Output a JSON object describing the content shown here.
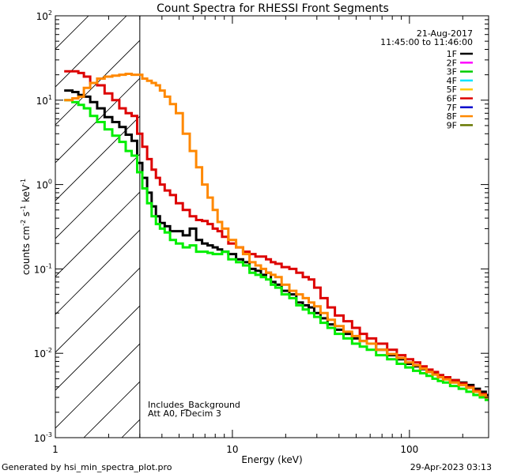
{
  "chart_data": {
    "type": "line",
    "title": "Count Spectra for RHESSI Front Segments",
    "xlabel": "Energy (keV)",
    "ylabel_parts": [
      "counts cm",
      "-2",
      " s",
      "-1",
      " keV",
      "-1"
    ],
    "xscale": "log",
    "yscale": "log",
    "xlim": [
      1,
      280
    ],
    "ylim": [
      0.001,
      100
    ],
    "x_ticks": [
      {
        "value": 10,
        "label": "10"
      },
      {
        "value": 100,
        "label": "100"
      }
    ],
    "x_corner_label": {
      "value": 1,
      "label": "1"
    },
    "y_ticks": [
      {
        "value": 100,
        "base": "10",
        "exp": "2"
      },
      {
        "value": 10,
        "base": "10",
        "exp": "1"
      },
      {
        "value": 1,
        "base": "10",
        "exp": "0"
      },
      {
        "value": 0.1,
        "base": "10",
        "exp": "-1"
      },
      {
        "value": 0.01,
        "base": "10",
        "exp": "-2"
      },
      {
        "value": 0.001,
        "base": "10",
        "exp": "-3"
      }
    ],
    "hatched_region": {
      "xmin": 1,
      "xmax": 3
    },
    "date": "21-Aug-2017",
    "time_range": "11:45:00 to 11:46:00",
    "annotations": [
      "Includes_Background",
      "Att A0, FDecim 3"
    ],
    "legend_position": "top-right",
    "legend": [
      {
        "name": "1F",
        "color": "#000000"
      },
      {
        "name": "2F",
        "color": "#ff00ff"
      },
      {
        "name": "3F",
        "color": "#00cc00"
      },
      {
        "name": "4F",
        "color": "#00e5ff"
      },
      {
        "name": "5F",
        "color": "#ffcc00"
      },
      {
        "name": "6F",
        "color": "#dd0000"
      },
      {
        "name": "7F",
        "color": "#0000cc"
      },
      {
        "name": "8F",
        "color": "#ff8800"
      },
      {
        "name": "9F",
        "color": "#667700"
      }
    ],
    "series": [
      {
        "name": "1F",
        "color": "#000000",
        "x": [
          1.2,
          1.3,
          1.4,
          1.5,
          1.65,
          1.8,
          2.0,
          2.2,
          2.4,
          2.6,
          2.8,
          3.0,
          3.2,
          3.4,
          3.6,
          3.8,
          4.0,
          4.3,
          4.6,
          5.0,
          5.5,
          6.0,
          6.5,
          7.0,
          7.5,
          8.0,
          8.5,
          9.0,
          10,
          11,
          12,
          13,
          14,
          15,
          16,
          17,
          18,
          20,
          22,
          24,
          26,
          28,
          30,
          33,
          36,
          40,
          45,
          50,
          55,
          60,
          70,
          80,
          90,
          100,
          110,
          120,
          130,
          140,
          150,
          160,
          180,
          200,
          220,
          240,
          260,
          280
        ],
        "values": [
          13,
          12.5,
          11.5,
          11,
          9.5,
          8,
          6.3,
          5.5,
          4.8,
          3.9,
          3.3,
          1.8,
          1.2,
          0.8,
          0.55,
          0.42,
          0.35,
          0.32,
          0.28,
          0.28,
          0.25,
          0.3,
          0.22,
          0.2,
          0.19,
          0.18,
          0.17,
          0.16,
          0.15,
          0.13,
          0.12,
          0.1,
          0.095,
          0.085,
          0.09,
          0.07,
          0.065,
          0.055,
          0.05,
          0.04,
          0.037,
          0.035,
          0.03,
          0.026,
          0.022,
          0.019,
          0.017,
          0.015,
          0.014,
          0.013,
          0.011,
          0.0095,
          0.0085,
          0.0075,
          0.007,
          0.0065,
          0.006,
          0.0058,
          0.0055,
          0.0052,
          0.0048,
          0.0045,
          0.0042,
          0.0038,
          0.0035,
          0.0032
        ]
      },
      {
        "name": "3F",
        "color": "#00ee00",
        "x": [
          1.2,
          1.3,
          1.4,
          1.5,
          1.65,
          1.8,
          2.0,
          2.2,
          2.4,
          2.6,
          2.8,
          3.0,
          3.2,
          3.4,
          3.6,
          3.8,
          4.0,
          4.3,
          4.6,
          5.0,
          5.5,
          6.0,
          6.5,
          7.0,
          7.5,
          8.0,
          8.5,
          9.0,
          10,
          11,
          12,
          13,
          14,
          15,
          16,
          17,
          18,
          20,
          22,
          24,
          26,
          28,
          30,
          33,
          36,
          40,
          45,
          50,
          55,
          60,
          70,
          80,
          90,
          100,
          110,
          120,
          130,
          140,
          150,
          160,
          180,
          200,
          220,
          240,
          260,
          280
        ],
        "values": [
          10,
          9.5,
          8.8,
          8,
          6.5,
          5.5,
          4.5,
          3.8,
          3.2,
          2.5,
          2.2,
          1.4,
          0.9,
          0.6,
          0.42,
          0.34,
          0.3,
          0.27,
          0.22,
          0.2,
          0.18,
          0.19,
          0.16,
          0.16,
          0.155,
          0.15,
          0.15,
          0.16,
          0.13,
          0.12,
          0.11,
          0.09,
          0.085,
          0.08,
          0.075,
          0.065,
          0.06,
          0.05,
          0.045,
          0.037,
          0.033,
          0.03,
          0.027,
          0.023,
          0.02,
          0.017,
          0.015,
          0.013,
          0.012,
          0.011,
          0.0095,
          0.0085,
          0.0075,
          0.0068,
          0.0062,
          0.0058,
          0.0054,
          0.005,
          0.0047,
          0.0045,
          0.0041,
          0.0038,
          0.0035,
          0.0032,
          0.003,
          0.0028
        ]
      },
      {
        "name": "6F",
        "color": "#dd0000",
        "x": [
          1.2,
          1.3,
          1.4,
          1.5,
          1.65,
          1.8,
          2.0,
          2.2,
          2.4,
          2.6,
          2.8,
          3.0,
          3.2,
          3.4,
          3.6,
          3.8,
          4.0,
          4.3,
          4.6,
          5.0,
          5.5,
          6.0,
          6.5,
          7.0,
          7.5,
          8.0,
          8.5,
          9.0,
          10,
          11,
          12,
          13,
          14,
          15,
          16,
          17,
          18,
          20,
          22,
          24,
          26,
          28,
          30,
          33,
          36,
          40,
          45,
          50,
          55,
          60,
          70,
          80,
          90,
          100,
          110,
          120,
          130,
          140,
          150,
          160,
          180,
          200,
          220,
          240,
          260,
          280
        ],
        "values": [
          22,
          22,
          21,
          19,
          16,
          15,
          12,
          10,
          8,
          7,
          6.5,
          4.0,
          2.8,
          2.0,
          1.5,
          1.2,
          1.0,
          0.85,
          0.75,
          0.6,
          0.5,
          0.42,
          0.38,
          0.37,
          0.34,
          0.3,
          0.28,
          0.24,
          0.2,
          0.18,
          0.16,
          0.15,
          0.14,
          0.14,
          0.13,
          0.12,
          0.115,
          0.105,
          0.1,
          0.09,
          0.08,
          0.075,
          0.06,
          0.045,
          0.035,
          0.028,
          0.024,
          0.02,
          0.017,
          0.015,
          0.013,
          0.011,
          0.0095,
          0.0085,
          0.0078,
          0.007,
          0.0064,
          0.006,
          0.0055,
          0.0052,
          0.0048,
          0.0044,
          0.004,
          0.0036,
          0.0033,
          0.003
        ]
      },
      {
        "name": "8F",
        "color": "#ff8800",
        "x": [
          1.2,
          1.3,
          1.4,
          1.5,
          1.65,
          1.8,
          2.0,
          2.2,
          2.4,
          2.6,
          2.8,
          3.0,
          3.2,
          3.4,
          3.6,
          3.8,
          4.0,
          4.3,
          4.6,
          5.0,
          5.5,
          6.0,
          6.5,
          7.0,
          7.5,
          8.0,
          8.5,
          9.0,
          10,
          11,
          12,
          13,
          14,
          15,
          16,
          17,
          18,
          20,
          22,
          24,
          26,
          28,
          30,
          33,
          36,
          40,
          45,
          50,
          55,
          60,
          70,
          80,
          90,
          100,
          110,
          120,
          130,
          140,
          150,
          160,
          180,
          200,
          220,
          240,
          260,
          280
        ],
        "values": [
          10,
          10.5,
          11,
          14,
          16,
          18,
          19,
          19.5,
          20,
          20.5,
          20,
          20,
          18,
          17,
          16,
          15,
          13,
          11,
          9,
          7,
          4,
          2.5,
          1.6,
          1.0,
          0.7,
          0.5,
          0.36,
          0.3,
          0.22,
          0.18,
          0.15,
          0.12,
          0.11,
          0.1,
          0.09,
          0.085,
          0.08,
          0.065,
          0.055,
          0.05,
          0.045,
          0.04,
          0.036,
          0.03,
          0.025,
          0.021,
          0.018,
          0.016,
          0.014,
          0.013,
          0.011,
          0.0098,
          0.0088,
          0.0078,
          0.0072,
          0.0066,
          0.006,
          0.0056,
          0.0052,
          0.0049,
          0.0045,
          0.0042,
          0.0039,
          0.0035,
          0.0032,
          0.003
        ]
      }
    ]
  },
  "footer": {
    "generated_by": "Generated by hsi_min_spectra_plot.pro",
    "timestamp": "29-Apr-2023 03:13"
  }
}
